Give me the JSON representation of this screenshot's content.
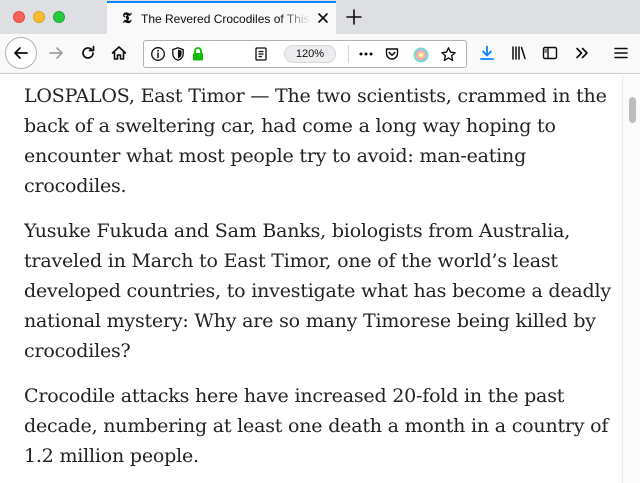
{
  "tab": {
    "title": "The Revered Crocodiles of This"
  },
  "urlbar": {
    "zoom": "120%"
  },
  "article": {
    "paragraphs": [
      "LOSPALOS, East Timor — The two scientists, crammed in the back of a sweltering car, had come a long way hoping to encounter what most people try to avoid: man-eating crocodiles.",
      "Yusuke Fukuda and Sam Banks, biologists from Australia, traveled in March to East Timor, one of the world’s least developed countries, to investigate what has become a deadly national mystery: Why are so many Timorese being killed by crocodiles?",
      "Crocodile attacks here have increased 20-fold in the past decade, numbering at least one death a month in a country of 1.2 million people."
    ]
  },
  "icons": {
    "tab_favicon": "nyt-logo-icon",
    "tab_close": "close-icon",
    "new_tab": "plus-icon",
    "back": "back-arrow-icon",
    "forward": "forward-arrow-icon",
    "reload": "reload-icon",
    "home": "home-icon",
    "info": "info-icon",
    "tracking": "shield-icon",
    "secure": "lock-icon",
    "reader": "reader-view-icon",
    "more": "more-dots-icon",
    "pocket": "pocket-icon",
    "extension": "extension-icon",
    "bookmark": "star-icon",
    "download": "download-icon",
    "library": "library-icon",
    "sidebar": "sidebar-icon",
    "overflow": "overflow-chevron-icon",
    "menu": "hamburger-menu-icon"
  },
  "colors": {
    "accent": "#0a84ff",
    "lock": "#12bc00",
    "download": "#0a84ff"
  }
}
